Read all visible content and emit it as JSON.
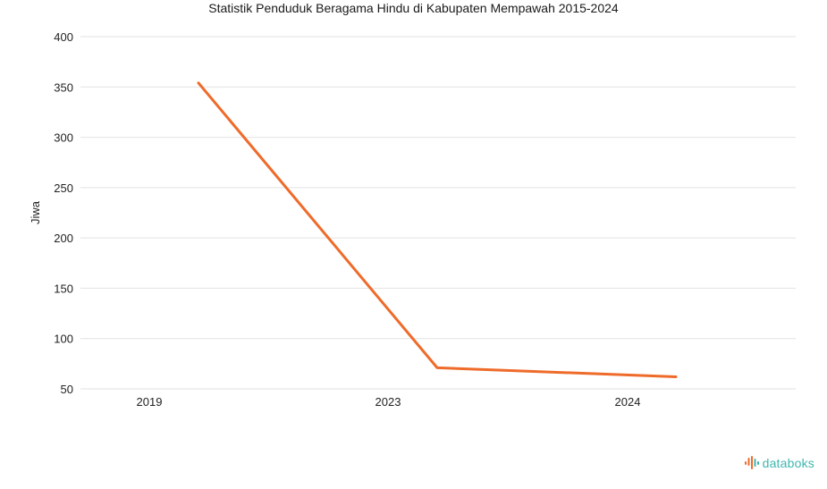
{
  "chart_data": {
    "type": "line",
    "title": "Statistik Penduduk Beragama Hindu di Kabupaten Mempawah 2015-2024",
    "xlabel": "",
    "ylabel": "Jiwa",
    "categories": [
      "2019",
      "2023",
      "2024"
    ],
    "series": [
      {
        "values": [
          354,
          71,
          62
        ],
        "color": "#ee6b2a"
      }
    ],
    "ylim": [
      50,
      400
    ],
    "yticks": [
      50,
      100,
      150,
      200,
      250,
      300,
      350,
      400
    ],
    "grid": true,
    "gridColor": "#e2e2e2"
  },
  "brand": {
    "name": "databoks",
    "icon": "databoks-logo-icon",
    "color": "#3fb6b0",
    "accent": "#ee6b2a"
  }
}
